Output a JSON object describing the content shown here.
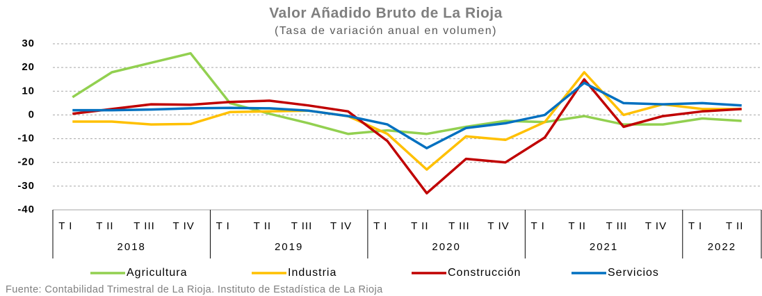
{
  "chart_data": {
    "type": "line",
    "title": "Valor Añadido Bruto de La Rioja",
    "subtitle": "(Tasa de variación  anual en volumen)",
    "groups": [
      {
        "year": "2018",
        "quarters": [
          "T I",
          "T II",
          "T III",
          "T IV"
        ]
      },
      {
        "year": "2019",
        "quarters": [
          "T I",
          "T II",
          "T III",
          "T IV"
        ]
      },
      {
        "year": "2020",
        "quarters": [
          "T I",
          "T II",
          "T III",
          "T IV"
        ]
      },
      {
        "year": "2021",
        "quarters": [
          "T I",
          "T II",
          "T III",
          "T IV"
        ]
      },
      {
        "year": "2022",
        "quarters": [
          "T I",
          "T II"
        ]
      }
    ],
    "series": [
      {
        "name": "Agricultura",
        "color": "#92d050",
        "values": [
          7.5,
          18,
          22,
          26,
          5,
          0.5,
          -3.5,
          -8,
          -6.5,
          -8,
          -5,
          -2.5,
          -3,
          -0.5,
          -4,
          -4,
          -1.5,
          -2.5
        ]
      },
      {
        "name": "Industria",
        "color": "#ffc000",
        "values": [
          -2.8,
          -2.8,
          -4,
          -3.8,
          1.2,
          1.5,
          1.8,
          -0.5,
          -8,
          -23,
          -9,
          -10.5,
          -3,
          18,
          0,
          4.5,
          2.5,
          2.5
        ]
      },
      {
        "name": "Construcción",
        "color": "#c00000",
        "values": [
          0.5,
          2.5,
          4.5,
          4.3,
          5.5,
          6,
          4,
          1.5,
          -11,
          -33,
          -18.5,
          -20,
          -9.5,
          15,
          -5,
          -0.5,
          1.5,
          2.5
        ]
      },
      {
        "name": "Servicios",
        "color": "#0070c0",
        "values": [
          2,
          2,
          2.3,
          2.8,
          3,
          2.8,
          1.8,
          -0.5,
          -4,
          -14,
          -5.5,
          -3.5,
          0,
          13.5,
          5,
          4.5,
          5,
          4
        ]
      }
    ],
    "ylim": [
      -40,
      30
    ],
    "yticks": [
      -40,
      -30,
      -20,
      -10,
      0,
      10,
      20,
      30
    ],
    "grid": true,
    "legend": "bottom",
    "source": "Fuente: Contabilidad Trimestral de La Rioja. Instituto de Estadística de La Rioja"
  }
}
